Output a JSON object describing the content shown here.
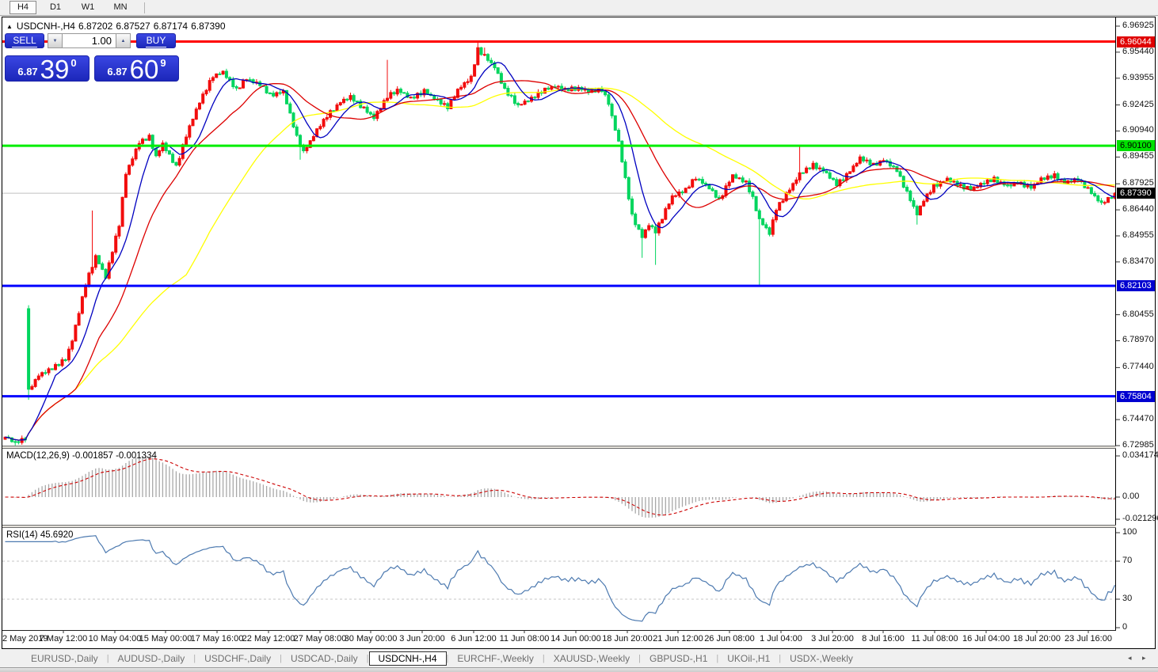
{
  "toolbar": {
    "timeframes": [
      {
        "label": "H4",
        "active": true
      },
      {
        "label": "D1",
        "active": false
      },
      {
        "label": "W1",
        "active": false
      },
      {
        "label": "MN",
        "active": false
      }
    ]
  },
  "trade": {
    "sell_label": "SELL",
    "buy_label": "BUY",
    "volume": "1.00",
    "spinner_up_icon": "▲",
    "spinner_down_icon": "▼",
    "sell_price": {
      "prefix": "6.87",
      "main": "39",
      "sup": "0"
    },
    "buy_price": {
      "prefix": "6.87",
      "main": "60",
      "sup": "9"
    }
  },
  "chart_data": {
    "type": "candlestick",
    "symbol_display": "USDCNH-,H4",
    "collapse_icon": "▲",
    "ohlc_current": {
      "open": "6.87202",
      "high": "6.87527",
      "low": "6.87174",
      "close": "6.87390"
    },
    "current_price": 6.8739,
    "n_candles": 332,
    "price_range_visible": [
      6.72985,
      6.96925
    ],
    "colors": {
      "up": "#f20d0d",
      "down": "#00d55e",
      "ma_fast": "#0000c0",
      "ma_mid": "#dd0000",
      "ma_slow": "#ffff00",
      "line_red": "#ff0000",
      "line_green": "#00ee00",
      "line_blue": "#0000ff",
      "current_line": "#c0c0c0",
      "macd_hist": "#a8a8a8",
      "macd_signal": "#cc0000",
      "rsi_line": "#4d7ab0",
      "panel_blue": "#2633d0"
    },
    "close_keyframes": [
      [
        0,
        6.735
      ],
      [
        3,
        6.7315
      ],
      [
        6,
        6.734
      ],
      [
        7,
        6.762
      ],
      [
        10,
        6.77
      ],
      [
        14,
        6.774
      ],
      [
        18,
        6.779
      ],
      [
        20,
        6.79
      ],
      [
        24,
        6.822
      ],
      [
        27,
        6.838
      ],
      [
        30,
        6.826
      ],
      [
        34,
        6.856
      ],
      [
        36,
        6.885
      ],
      [
        40,
        6.903
      ],
      [
        43,
        6.906
      ],
      [
        45,
        6.895
      ],
      [
        47,
        6.902
      ],
      [
        51,
        6.889
      ],
      [
        55,
        6.912
      ],
      [
        58,
        6.926
      ],
      [
        62,
        6.941
      ],
      [
        65,
        6.943
      ],
      [
        69,
        6.933
      ],
      [
        72,
        6.939
      ],
      [
        76,
        6.936
      ],
      [
        79,
        6.93
      ],
      [
        83,
        6.932
      ],
      [
        87,
        6.906
      ],
      [
        89,
        6.897
      ],
      [
        93,
        6.91
      ],
      [
        96,
        6.918
      ],
      [
        100,
        6.926
      ],
      [
        103,
        6.929
      ],
      [
        107,
        6.922
      ],
      [
        110,
        6.917
      ],
      [
        114,
        6.929
      ],
      [
        117,
        6.933
      ],
      [
        121,
        6.928
      ],
      [
        125,
        6.932
      ],
      [
        128,
        6.928
      ],
      [
        132,
        6.923
      ],
      [
        135,
        6.933
      ],
      [
        139,
        6.94
      ],
      [
        141,
        6.956
      ],
      [
        144,
        6.95
      ],
      [
        146,
        6.946
      ],
      [
        149,
        6.933
      ],
      [
        153,
        6.924
      ],
      [
        157,
        6.928
      ],
      [
        160,
        6.932
      ],
      [
        164,
        6.935
      ],
      [
        167,
        6.933
      ],
      [
        171,
        6.934
      ],
      [
        174,
        6.932
      ],
      [
        178,
        6.933
      ],
      [
        180,
        6.925
      ],
      [
        183,
        6.903
      ],
      [
        185,
        6.882
      ],
      [
        187,
        6.861
      ],
      [
        190,
        6.849
      ],
      [
        192,
        6.856
      ],
      [
        194,
        6.852
      ],
      [
        197,
        6.864
      ],
      [
        199,
        6.872
      ],
      [
        203,
        6.876
      ],
      [
        206,
        6.883
      ],
      [
        210,
        6.877
      ],
      [
        213,
        6.87
      ],
      [
        217,
        6.884
      ],
      [
        221,
        6.88
      ],
      [
        223,
        6.871
      ],
      [
        225,
        6.859
      ],
      [
        228,
        6.851
      ],
      [
        230,
        6.865
      ],
      [
        234,
        6.876
      ],
      [
        237,
        6.885
      ],
      [
        241,
        6.89
      ],
      [
        244,
        6.887
      ],
      [
        248,
        6.879
      ],
      [
        251,
        6.884
      ],
      [
        255,
        6.894
      ],
      [
        259,
        6.89
      ],
      [
        262,
        6.893
      ],
      [
        266,
        6.887
      ],
      [
        269,
        6.874
      ],
      [
        272,
        6.862
      ],
      [
        274,
        6.87
      ],
      [
        277,
        6.878
      ],
      [
        281,
        6.882
      ],
      [
        285,
        6.878
      ],
      [
        288,
        6.876
      ],
      [
        292,
        6.88
      ],
      [
        295,
        6.882
      ],
      [
        299,
        6.878
      ],
      [
        302,
        6.88
      ],
      [
        306,
        6.877
      ],
      [
        309,
        6.882
      ],
      [
        313,
        6.884
      ],
      [
        316,
        6.88
      ],
      [
        320,
        6.882
      ],
      [
        322,
        6.878
      ],
      [
        325,
        6.872
      ],
      [
        327,
        6.868
      ],
      [
        330,
        6.872
      ],
      [
        331,
        6.8739
      ]
    ],
    "special_candles": {
      "7": {
        "open": 6.808,
        "high": 6.81,
        "low": 6.756,
        "close": 6.762
      }
    },
    "wick_overrides": {
      "3": {
        "low": 6.73
      },
      "26": {
        "high": 6.864
      },
      "88": {
        "low": 6.893
      },
      "114": {
        "high": 6.95
      },
      "141": {
        "high": 6.961
      },
      "143": {
        "high": 6.957
      },
      "190": {
        "low": 6.837
      },
      "194": {
        "low": 6.833
      },
      "225": {
        "low": 6.821
      },
      "237": {
        "high": 6.901
      },
      "272": {
        "low": 6.856
      }
    },
    "moving_averages": [
      {
        "name": "fast",
        "period": 9
      },
      {
        "name": "mid",
        "period": 22
      },
      {
        "name": "slow",
        "period": 55
      }
    ],
    "horizontal_lines": [
      {
        "price": 6.96044,
        "color": "#ff0000",
        "label": "6.96044",
        "label_bg": "#e00000",
        "label_fg": "#ffffff"
      },
      {
        "price": 6.901,
        "color": "#00ee00",
        "label": "6.90100",
        "label_bg": "#00e000",
        "label_fg": "#000000"
      },
      {
        "price": 6.82103,
        "color": "#0000ff",
        "label": "6.82103",
        "label_bg": "#0000d0",
        "label_fg": "#ffffff"
      },
      {
        "price": 6.75804,
        "color": "#0000ff",
        "label": "6.75804",
        "label_bg": "#0000d0",
        "label_fg": "#ffffff"
      }
    ],
    "current_price_label": {
      "text": "6.87390",
      "bg": "#000000",
      "fg": "#ffffff"
    },
    "price_ticks": [
      "6.96925",
      "6.95440",
      "6.93955",
      "6.92425",
      "6.90940",
      "6.89455",
      "6.87925",
      "6.86440",
      "6.84955",
      "6.83470",
      "6.80455",
      "6.78970",
      "6.77440",
      "6.74470",
      "6.72985"
    ],
    "macd": {
      "label": "MACD(12,26,9) -0.001857 -0.001334",
      "params": [
        12,
        26,
        9
      ],
      "main_value": "-0.001857",
      "signal_value": "-0.001334",
      "axis": [
        "0.034174",
        "0.00",
        "-0.021296"
      ]
    },
    "rsi": {
      "label": "RSI(14) 45.6920",
      "period": 14,
      "value": "45.6920",
      "axis": [
        "100",
        "70",
        "30",
        "0"
      ],
      "levels": [
        70,
        30
      ]
    },
    "time_labels": [
      "2 May 2019",
      "7 May 12:00",
      "10 May 04:00",
      "15 May 00:00",
      "17 May 16:00",
      "22 May 12:00",
      "27 May 08:00",
      "30 May 00:00",
      "3 Jun 20:00",
      "6 Jun 12:00",
      "11 Jun 08:00",
      "14 Jun 00:00",
      "18 Jun 20:00",
      "21 Jun 12:00",
      "26 Jun 08:00",
      "1 Jul 04:00",
      "3 Jul 20:00",
      "8 Jul 16:00",
      "11 Jul 08:00",
      "16 Jul 04:00",
      "18 Jul 20:00",
      "23 Jul 16:00"
    ]
  },
  "tabs": {
    "items": [
      {
        "label": "EURUSD-,Daily",
        "active": false
      },
      {
        "label": "AUDUSD-,Daily",
        "active": false
      },
      {
        "label": "USDCHF-,Daily",
        "active": false
      },
      {
        "label": "USDCAD-,Daily",
        "active": false
      },
      {
        "label": "USDCNH-,H4",
        "active": true
      },
      {
        "label": "EURCHF-,Weekly",
        "active": false
      },
      {
        "label": "XAUUSD-,Weekly",
        "active": false
      },
      {
        "label": "GBPUSD-,H1",
        "active": false
      },
      {
        "label": "UKOil-,H1",
        "active": false
      },
      {
        "label": "USDX-,Weekly",
        "active": false
      }
    ],
    "separator": "|",
    "nav_left": "◂",
    "nav_right": "▸"
  }
}
